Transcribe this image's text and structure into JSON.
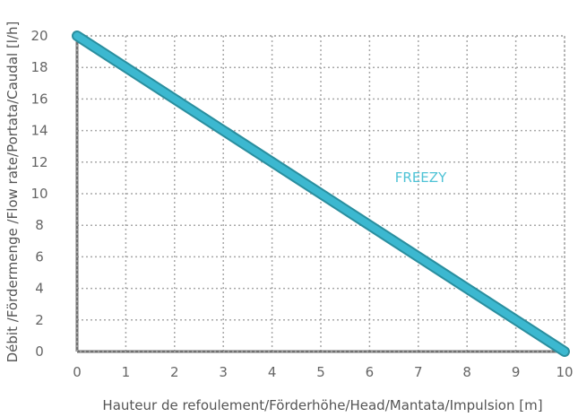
{
  "chart_data": {
    "type": "line",
    "title": "",
    "xlabel": "Hauteur de refoulement/Förderhöhe/Head/Mantata/Impulsion [m]",
    "ylabel": "Débit /Fördermenge /Flow rate/Portata/Caudal [l/h]",
    "xlim": [
      0,
      10
    ],
    "ylim": [
      0,
      20
    ],
    "xticks": [
      "0",
      "1",
      "2",
      "3",
      "4",
      "5",
      "6",
      "7",
      "8",
      "9",
      "10"
    ],
    "yticks": [
      "0",
      "2",
      "4",
      "6",
      "8",
      "10",
      "12",
      "14",
      "16",
      "18",
      "20"
    ],
    "grid": true,
    "series": [
      {
        "name": "FREEZY",
        "x": [
          0,
          10
        ],
        "y": [
          20,
          0
        ],
        "color": "#3cb8d0"
      }
    ]
  },
  "colors": {
    "series_line": "#3cb8d0",
    "series_edge": "#2a8e9e",
    "series_label": "#4fc3d6",
    "grid": "#a8a8a8",
    "frame": "#707070"
  }
}
